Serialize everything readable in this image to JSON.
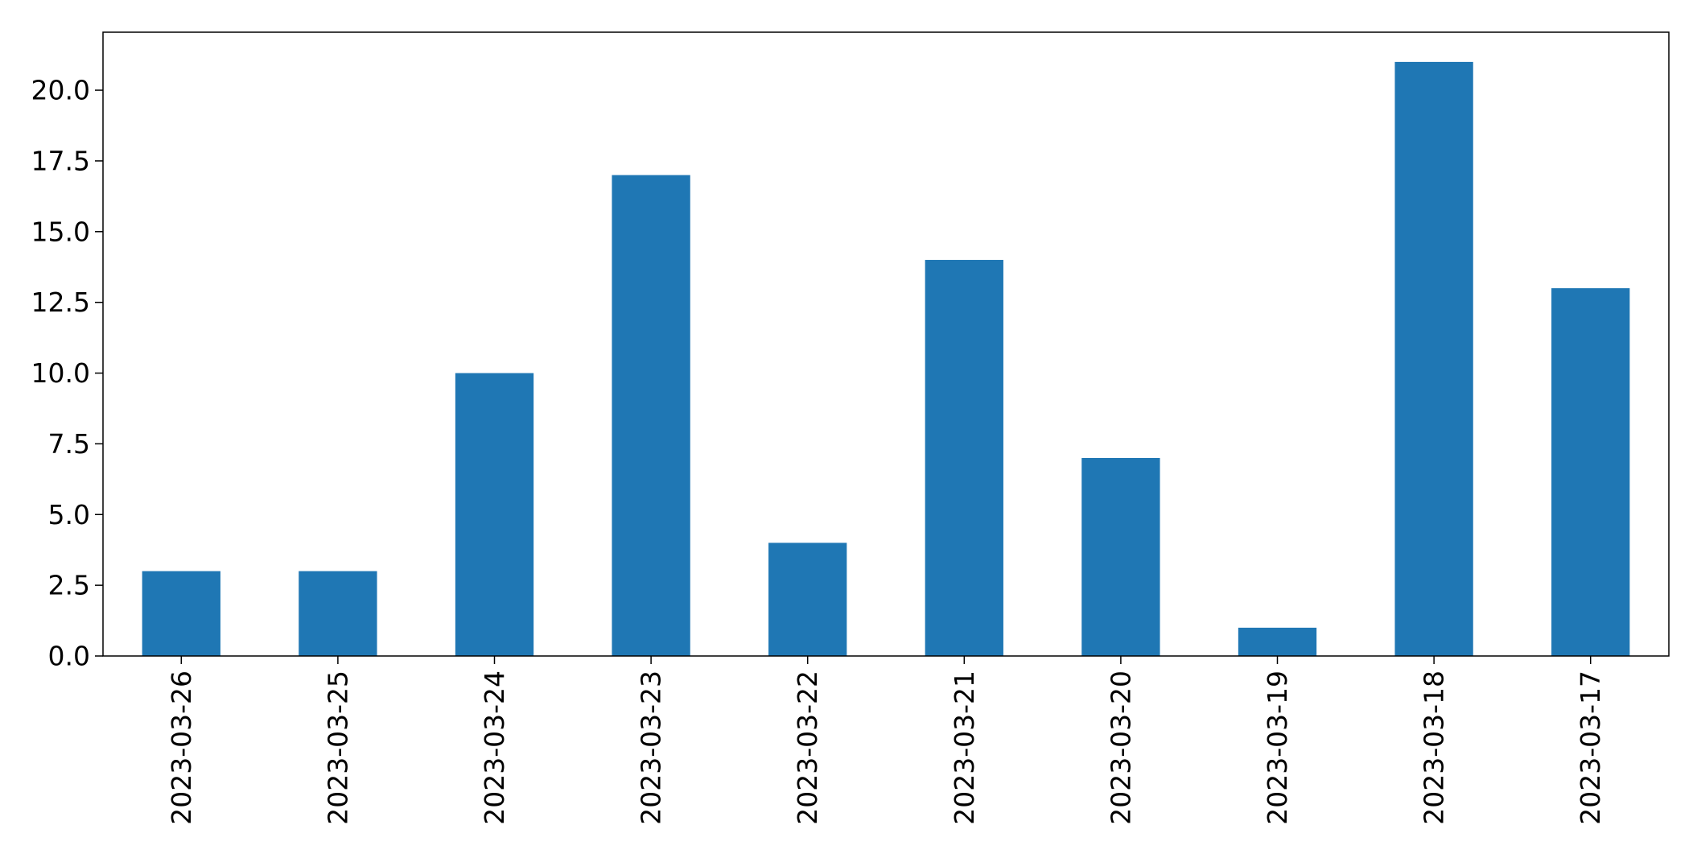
{
  "chart_data": {
    "type": "bar",
    "categories": [
      "2023-03-26",
      "2023-03-25",
      "2023-03-24",
      "2023-03-23",
      "2023-03-22",
      "2023-03-21",
      "2023-03-20",
      "2023-03-19",
      "2023-03-18",
      "2023-03-17"
    ],
    "values": [
      3,
      3,
      10,
      17,
      4,
      14,
      7,
      1,
      21,
      13
    ],
    "title": "",
    "xlabel": "",
    "ylabel": "",
    "ylim": [
      0,
      22.05
    ],
    "yticks": [
      0.0,
      2.5,
      5.0,
      7.5,
      10.0,
      12.5,
      15.0,
      17.5,
      20.0
    ],
    "ytick_labels": [
      "0.0",
      "2.5",
      "5.0",
      "7.5",
      "10.0",
      "12.5",
      "15.0",
      "17.5",
      "20.0"
    ],
    "bar_color": "#1f77b4",
    "grid": false,
    "legend": "none",
    "xtick_rotation": "vertical"
  }
}
